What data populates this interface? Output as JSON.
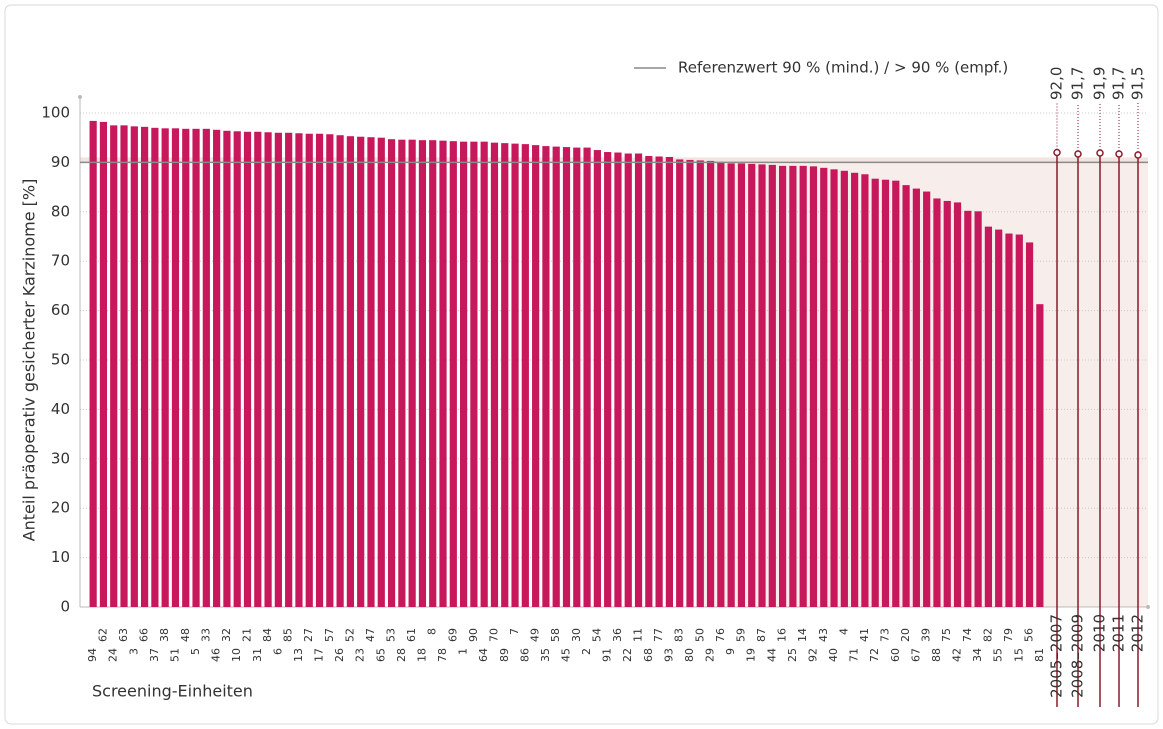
{
  "chart_data": {
    "type": "bar",
    "y_label": "Anteil präoperativ gesicherter Karzinome [%]",
    "x_label": "Screening-Einheiten",
    "categories": [
      "94",
      "62",
      "24",
      "63",
      "3",
      "66",
      "37",
      "38",
      "51",
      "48",
      "5",
      "33",
      "46",
      "32",
      "10",
      "21",
      "31",
      "84",
      "6",
      "85",
      "13",
      "27",
      "17",
      "57",
      "26",
      "52",
      "23",
      "47",
      "65",
      "53",
      "28",
      "61",
      "18",
      "8",
      "78",
      "69",
      "1",
      "90",
      "64",
      "70",
      "89",
      "7",
      "86",
      "49",
      "35",
      "58",
      "45",
      "30",
      "2",
      "54",
      "91",
      "36",
      "22",
      "11",
      "68",
      "77",
      "93",
      "83",
      "80",
      "50",
      "29",
      "76",
      "9",
      "59",
      "19",
      "87",
      "44",
      "16",
      "25",
      "14",
      "92",
      "43",
      "40",
      "4",
      "71",
      "41",
      "72",
      "73",
      "60",
      "20",
      "67",
      "39",
      "88",
      "75",
      "42",
      "74",
      "34",
      "82",
      "55",
      "79",
      "15",
      "56",
      "81"
    ],
    "values": [
      98.4,
      98.2,
      97.5,
      97.5,
      97.3,
      97.2,
      97.0,
      96.9,
      96.9,
      96.8,
      96.8,
      96.8,
      96.6,
      96.4,
      96.3,
      96.2,
      96.2,
      96.1,
      96.0,
      96.0,
      95.9,
      95.8,
      95.8,
      95.7,
      95.5,
      95.3,
      95.2,
      95.1,
      95.0,
      94.7,
      94.6,
      94.6,
      94.5,
      94.5,
      94.4,
      94.3,
      94.2,
      94.2,
      94.2,
      94.0,
      93.9,
      93.8,
      93.7,
      93.5,
      93.3,
      93.2,
      93.1,
      93.0,
      93.0,
      92.5,
      92.1,
      92.0,
      91.8,
      91.8,
      91.3,
      91.2,
      91.1,
      90.6,
      90.5,
      90.4,
      90.3,
      90.1,
      89.8,
      89.8,
      89.7,
      89.6,
      89.5,
      89.3,
      89.3,
      89.3,
      89.2,
      88.9,
      88.6,
      88.3,
      87.9,
      87.6,
      86.7,
      86.5,
      86.3,
      85.4,
      84.7,
      84.1,
      82.7,
      82.2,
      81.9,
      80.2,
      80.1,
      77.0,
      76.4,
      75.6,
      75.4,
      73.8,
      61.3
    ],
    "color": "#c8185c",
    "ylim": [
      0,
      100
    ],
    "yticks": [
      0,
      10,
      20,
      30,
      40,
      50,
      60,
      70,
      80,
      90,
      100
    ],
    "grid": true,
    "reference": {
      "name": "Referenzwert 90 % (mind.) / > 90 % (empf.)",
      "value": 90,
      "color": "#8a8a8a"
    },
    "years": {
      "categories": [
        "2005–2007",
        "2008–2009",
        "2010",
        "2011",
        "2012"
      ],
      "values": [
        92.0,
        91.7,
        91.9,
        91.7,
        91.5
      ],
      "value_labels": [
        "92,0",
        "91,7",
        "91,9",
        "91,7",
        "91,5"
      ],
      "color": "#8b1a2c"
    }
  }
}
